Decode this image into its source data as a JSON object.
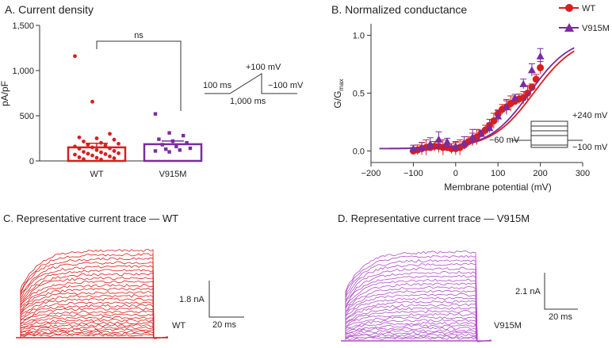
{
  "colors": {
    "wt": "#d81e1e",
    "v915m": "#7a2ca0",
    "trace_v915m": "#b04fc8",
    "axis": "#333333"
  },
  "chart_data": [
    {
      "panel": "A",
      "type": "bar",
      "title": "A. Current density",
      "ylabel": "pA/pF",
      "ylim": [
        0,
        1500
      ],
      "yticks": [
        "0",
        "500",
        "1,000",
        "1,500"
      ],
      "categories": [
        "WT",
        "V915M"
      ],
      "values": [
        150,
        185
      ],
      "errors": [
        45,
        35
      ],
      "significance": "ns",
      "points": [
        [
          1160,
          655,
          300,
          260,
          250,
          235,
          215,
          200,
          190,
          180,
          170,
          160,
          150,
          140,
          135,
          120,
          110,
          100,
          95,
          85,
          80,
          75,
          70,
          60,
          50,
          40,
          35,
          30,
          20,
          15
        ],
        [
          520,
          310,
          280,
          240,
          220,
          200,
          180,
          160,
          140,
          130,
          120,
          110,
          100
        ]
      ],
      "protocol": {
        "step": "+100 mV",
        "holding": "−100 mV",
        "pre": "100 ms",
        "duration": "1,000 ms"
      }
    },
    {
      "panel": "B",
      "type": "line",
      "title": "B. Normalized conductance",
      "xlabel": "Membrane potential (mV)",
      "ylabel_main": "G/G",
      "ylabel_sub": "max",
      "xlim": [
        -200,
        300
      ],
      "ylim": [
        -0.1,
        1.1
      ],
      "xticks": [
        "−200",
        "−100",
        "0",
        "100",
        "200",
        "300"
      ],
      "yticks": [
        "0.0",
        "0.5",
        "1.0"
      ],
      "series": [
        {
          "name": "WT",
          "marker": "circle",
          "x": [
            -100,
            -90,
            -80,
            -70,
            -60,
            -50,
            -40,
            -30,
            -20,
            -10,
            0,
            10,
            20,
            30,
            40,
            50,
            60,
            70,
            80,
            90,
            100,
            110,
            120,
            130,
            140,
            150,
            160,
            170,
            180,
            190,
            200
          ],
          "y": [
            0.0,
            0.01,
            0.02,
            0.03,
            0.03,
            0.04,
            0.04,
            0.03,
            0.03,
            0.02,
            0.02,
            0.03,
            0.05,
            0.08,
            0.1,
            0.12,
            0.15,
            0.18,
            0.22,
            0.26,
            0.32,
            0.36,
            0.38,
            0.41,
            0.43,
            0.45,
            0.46,
            0.5,
            0.55,
            0.62,
            0.72
          ],
          "fit_x": [
            -180,
            280
          ],
          "fit_midpoint": 185,
          "fit_slope": 50
        },
        {
          "name": "V915M",
          "marker": "triangle",
          "x": [
            -100,
            -80,
            -60,
            -40,
            -20,
            0,
            20,
            40,
            60,
            80,
            100,
            120,
            140,
            160,
            180,
            200
          ],
          "y": [
            0.02,
            0.03,
            0.06,
            0.1,
            0.08,
            0.04,
            0.07,
            0.12,
            0.15,
            0.2,
            0.3,
            0.38,
            0.46,
            0.58,
            0.7,
            0.82
          ],
          "fit_midpoint": 175,
          "fit_slope": 48
        }
      ],
      "protocol": {
        "top": "+240 mV",
        "hold": "−60 mV",
        "bottom": "−100 mV"
      }
    },
    {
      "panel": "C",
      "type": "line",
      "title": "C. Representative current trace — WT",
      "label": "WT",
      "scale_y": "1.8 nA",
      "scale_x": "20 ms",
      "sweeps": 28
    },
    {
      "panel": "D",
      "type": "line",
      "title": "D. Representative current trace — V915M",
      "label": "V915M",
      "scale_y": "2.1 nA",
      "scale_x": "20 ms",
      "sweeps": 28
    }
  ]
}
